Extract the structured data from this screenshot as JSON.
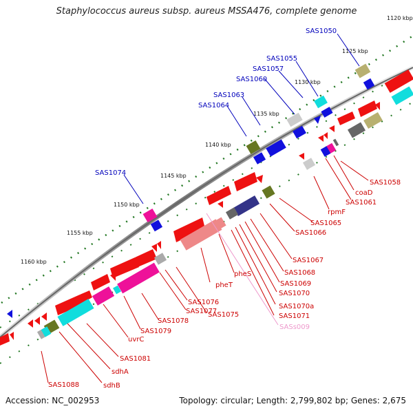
{
  "title": "Staphylococcus aureus subsp. aureus MSSA476, complete genome",
  "footer": {
    "accession": "Accession: NC_002953",
    "summary": "Topology: circular; Length: 2,799,802 bp; Genes: 2,675"
  },
  "colors": {
    "red": "#ee1111",
    "blue": "#1111dd",
    "cyan": "#11dddd",
    "magenta": "#ee1199",
    "olive": "#667722",
    "tan": "#b8b070",
    "gray": "#aaaaaa",
    "darkgray": "#666666",
    "lightgray": "#cccccc",
    "navy": "#333388",
    "pink": "#ee8888",
    "label_red": "#cc0000",
    "label_blue": "#0000bb",
    "label_pink": "#ee99cc",
    "backbone": "#888888",
    "tick": "#227722"
  },
  "ticks": [
    {
      "label": "1120 kbp"
    },
    {
      "label": "1125 kbp"
    },
    {
      "label": "1130 kbp"
    },
    {
      "label": "1135 kbp"
    },
    {
      "label": "1140 kbp"
    },
    {
      "label": "1145 kbp"
    },
    {
      "label": "1150 kbp"
    },
    {
      "label": "1155 kbp"
    },
    {
      "label": "1160 kbp"
    }
  ],
  "labels_top": [
    "SAS1050",
    "SAS1055",
    "SAS1057",
    "SAS1060",
    "SAS1063",
    "SAS1064",
    "SAS1074"
  ],
  "labels_bottom": [
    "SAS1058",
    "coaD",
    "SAS1061",
    "rpmF",
    "SAS1065",
    "SAS1066",
    "SAS1067",
    "SAS1068",
    "SAS1069",
    "SAS1070",
    "SAS1070a",
    "SAS1071",
    "SASs009",
    "pheS",
    "pheT",
    "SAS1075",
    "SAS1076",
    "SAS1077",
    "SAS1078",
    "SAS1079",
    "uvrC",
    "SAS1081",
    "sdhA",
    "sdhB",
    "SAS1088"
  ]
}
